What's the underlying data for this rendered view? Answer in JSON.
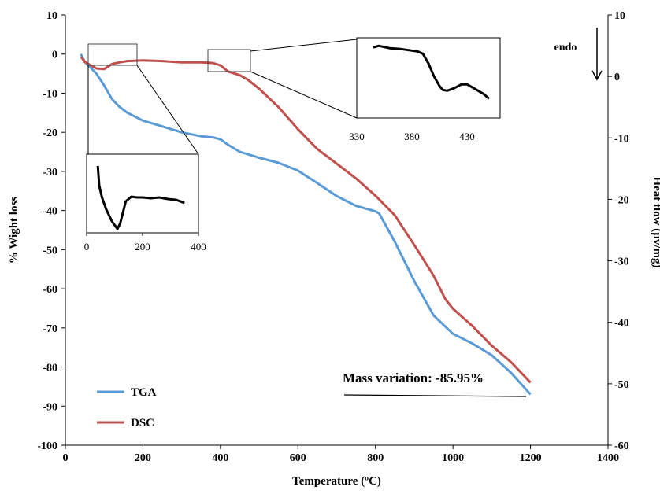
{
  "chart_data": [
    {
      "type": "line",
      "xlabel": "Temperature (ºC)",
      "ylabel": "% Wight loss",
      "y2label": "Heat flow (µv/mg)",
      "xlim": [
        0,
        1400
      ],
      "ylim": [
        -100,
        10
      ],
      "y2lim": [
        -60,
        10
      ],
      "xticks": [
        "0",
        "200",
        "400",
        "600",
        "800",
        "1000",
        "1200",
        "1400"
      ],
      "yticks": [
        "10",
        "0",
        "-10",
        "-20",
        "-30",
        "-40",
        "-50",
        "-60",
        "-70",
        "-80",
        "-90",
        "-100"
      ],
      "y2ticks": [
        "10",
        "0",
        "-10",
        "-20",
        "-30",
        "-40",
        "-50",
        "-60"
      ],
      "legend_position": "bottom-left",
      "grid": false,
      "annotations": [
        "Mass variation: -85.95%",
        "endo"
      ],
      "series": [
        {
          "name": "TGA",
          "axis": "left",
          "color": "#5b9bd5",
          "x": [
            40,
            50,
            60,
            70,
            80,
            90,
            100,
            120,
            140,
            160,
            200,
            250,
            300,
            350,
            380,
            400,
            420,
            450,
            500,
            550,
            600,
            650,
            700,
            750,
            800,
            810,
            850,
            900,
            950,
            1000,
            1050,
            1100,
            1150,
            1200
          ],
          "y": [
            0,
            -2,
            -3,
            -4,
            -5,
            -6.5,
            -8,
            -11.5,
            -13.5,
            -15,
            -17,
            -18.5,
            -20,
            -21,
            -21.3,
            -21.8,
            -23.2,
            -25,
            -26.5,
            -27.8,
            -29.8,
            -33,
            -36.3,
            -38.8,
            -40.2,
            -40.8,
            -48,
            -58,
            -66.8,
            -71.5,
            -74,
            -77,
            -81.5,
            -87
          ]
        },
        {
          "name": "DSC",
          "axis": "right",
          "color": "#c0504d",
          "x": [
            40,
            50,
            60,
            80,
            100,
            120,
            140,
            160,
            200,
            250,
            300,
            350,
            380,
            400,
            420,
            450,
            470,
            500,
            550,
            600,
            650,
            700,
            750,
            800,
            850,
            900,
            950,
            980,
            1000,
            1050,
            1100,
            1150,
            1200
          ],
          "y": [
            3.2,
            2.4,
            2,
            1.3,
            1.2,
            2.0,
            2.3,
            2.5,
            2.6,
            2.5,
            2.3,
            2.3,
            2.2,
            1.8,
            0.8,
            0.2,
            -0.5,
            -2,
            -5,
            -8.6,
            -11.8,
            -14.2,
            -16.6,
            -19.4,
            -22.6,
            -27.4,
            -32.4,
            -36.2,
            -37.8,
            -40.6,
            -43.8,
            -46.5,
            -49.8
          ]
        }
      ]
    },
    {
      "type": "line",
      "xlim": [
        0,
        400
      ],
      "xticks": [
        "0",
        "200",
        "400"
      ],
      "series": [
        {
          "color": "#000000",
          "x": [
            40,
            45,
            55,
            70,
            90,
            110,
            120,
            140,
            160,
            180,
            200,
            230,
            260,
            290,
            320,
            350
          ],
          "y": [
            0.85,
            0.6,
            0.45,
            0.3,
            0.15,
            0.05,
            0.12,
            0.4,
            0.46,
            0.45,
            0.45,
            0.44,
            0.45,
            0.43,
            0.42,
            0.38
          ]
        }
      ]
    },
    {
      "type": "line",
      "xlim": [
        330,
        460
      ],
      "xticks": [
        "330",
        "380",
        "430"
      ],
      "series": [
        {
          "color": "#000000",
          "x": [
            345,
            350,
            360,
            370,
            375,
            380,
            385,
            390,
            395,
            400,
            405,
            408,
            412,
            418,
            425,
            430,
            435,
            440,
            445,
            450
          ],
          "y": [
            0.88,
            0.9,
            0.87,
            0.86,
            0.85,
            0.84,
            0.83,
            0.8,
            0.68,
            0.52,
            0.4,
            0.35,
            0.34,
            0.37,
            0.42,
            0.42,
            0.38,
            0.34,
            0.3,
            0.24
          ]
        }
      ]
    }
  ]
}
